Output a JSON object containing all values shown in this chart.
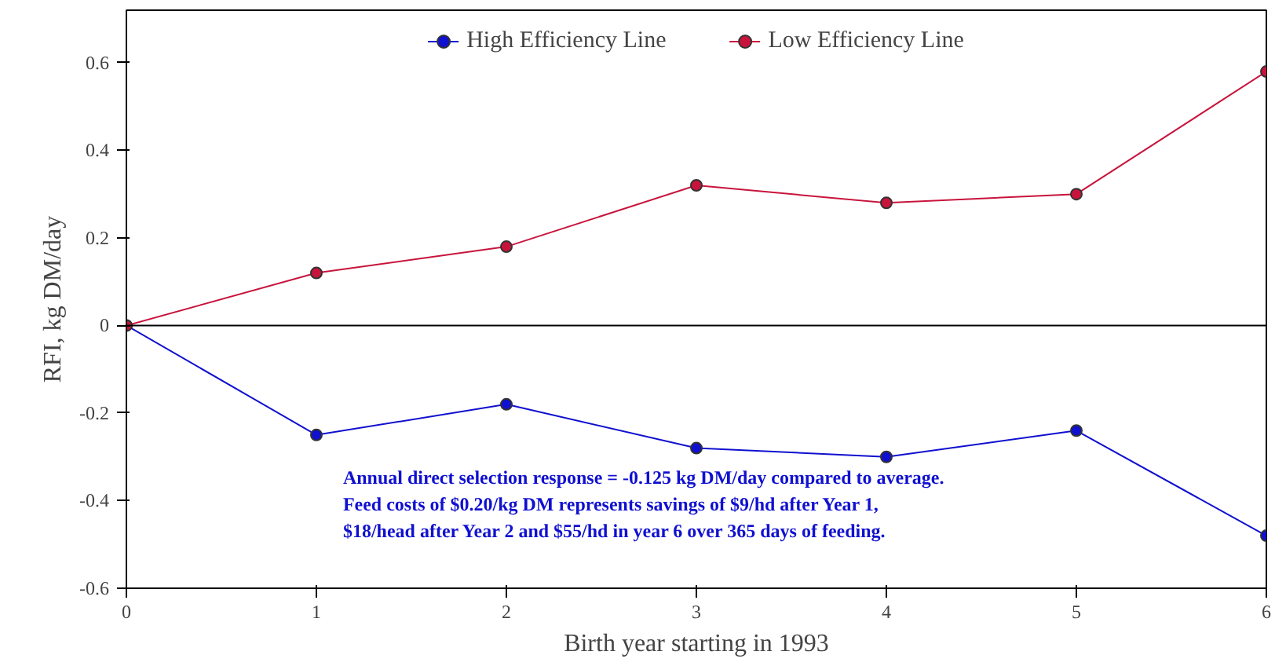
{
  "chart_data": {
    "type": "line",
    "xlabel": "Birth year starting in 1993",
    "ylabel": "RFI, kg DM/day",
    "x": [
      0,
      1,
      2,
      3,
      4,
      5,
      6
    ],
    "series": [
      {
        "name": "High Efficiency Line",
        "color": "#1010d0",
        "values": [
          0,
          -0.25,
          -0.18,
          -0.28,
          -0.3,
          -0.24,
          -0.48
        ]
      },
      {
        "name": "Low Efficiency Line",
        "color": "#c8143c",
        "values": [
          0,
          0.12,
          0.18,
          0.32,
          0.28,
          0.3,
          0.58
        ]
      }
    ],
    "xlim": [
      0,
      6
    ],
    "xticks": [
      0,
      1,
      2,
      3,
      4,
      5,
      6
    ],
    "ylim": [
      -0.6,
      0.72
    ],
    "yticks": [
      -0.6,
      -0.4,
      -0.2,
      0,
      0.2,
      0.4,
      0.6
    ],
    "ref_lines": [
      {
        "axis": "y",
        "value": 0,
        "color": "#000000"
      }
    ],
    "annotations": [
      "Annual direct selection response = -0.125 kg DM/day compared to average.\nFeed costs of $0.20/kg DM represents savings of $9/hd after Year 1,\n$18/head after Year 2 and $55/hd in year 6 over 365 days of feeding."
    ],
    "legend": "top",
    "marker": "circle",
    "line_style": "solid",
    "grid": false
  }
}
